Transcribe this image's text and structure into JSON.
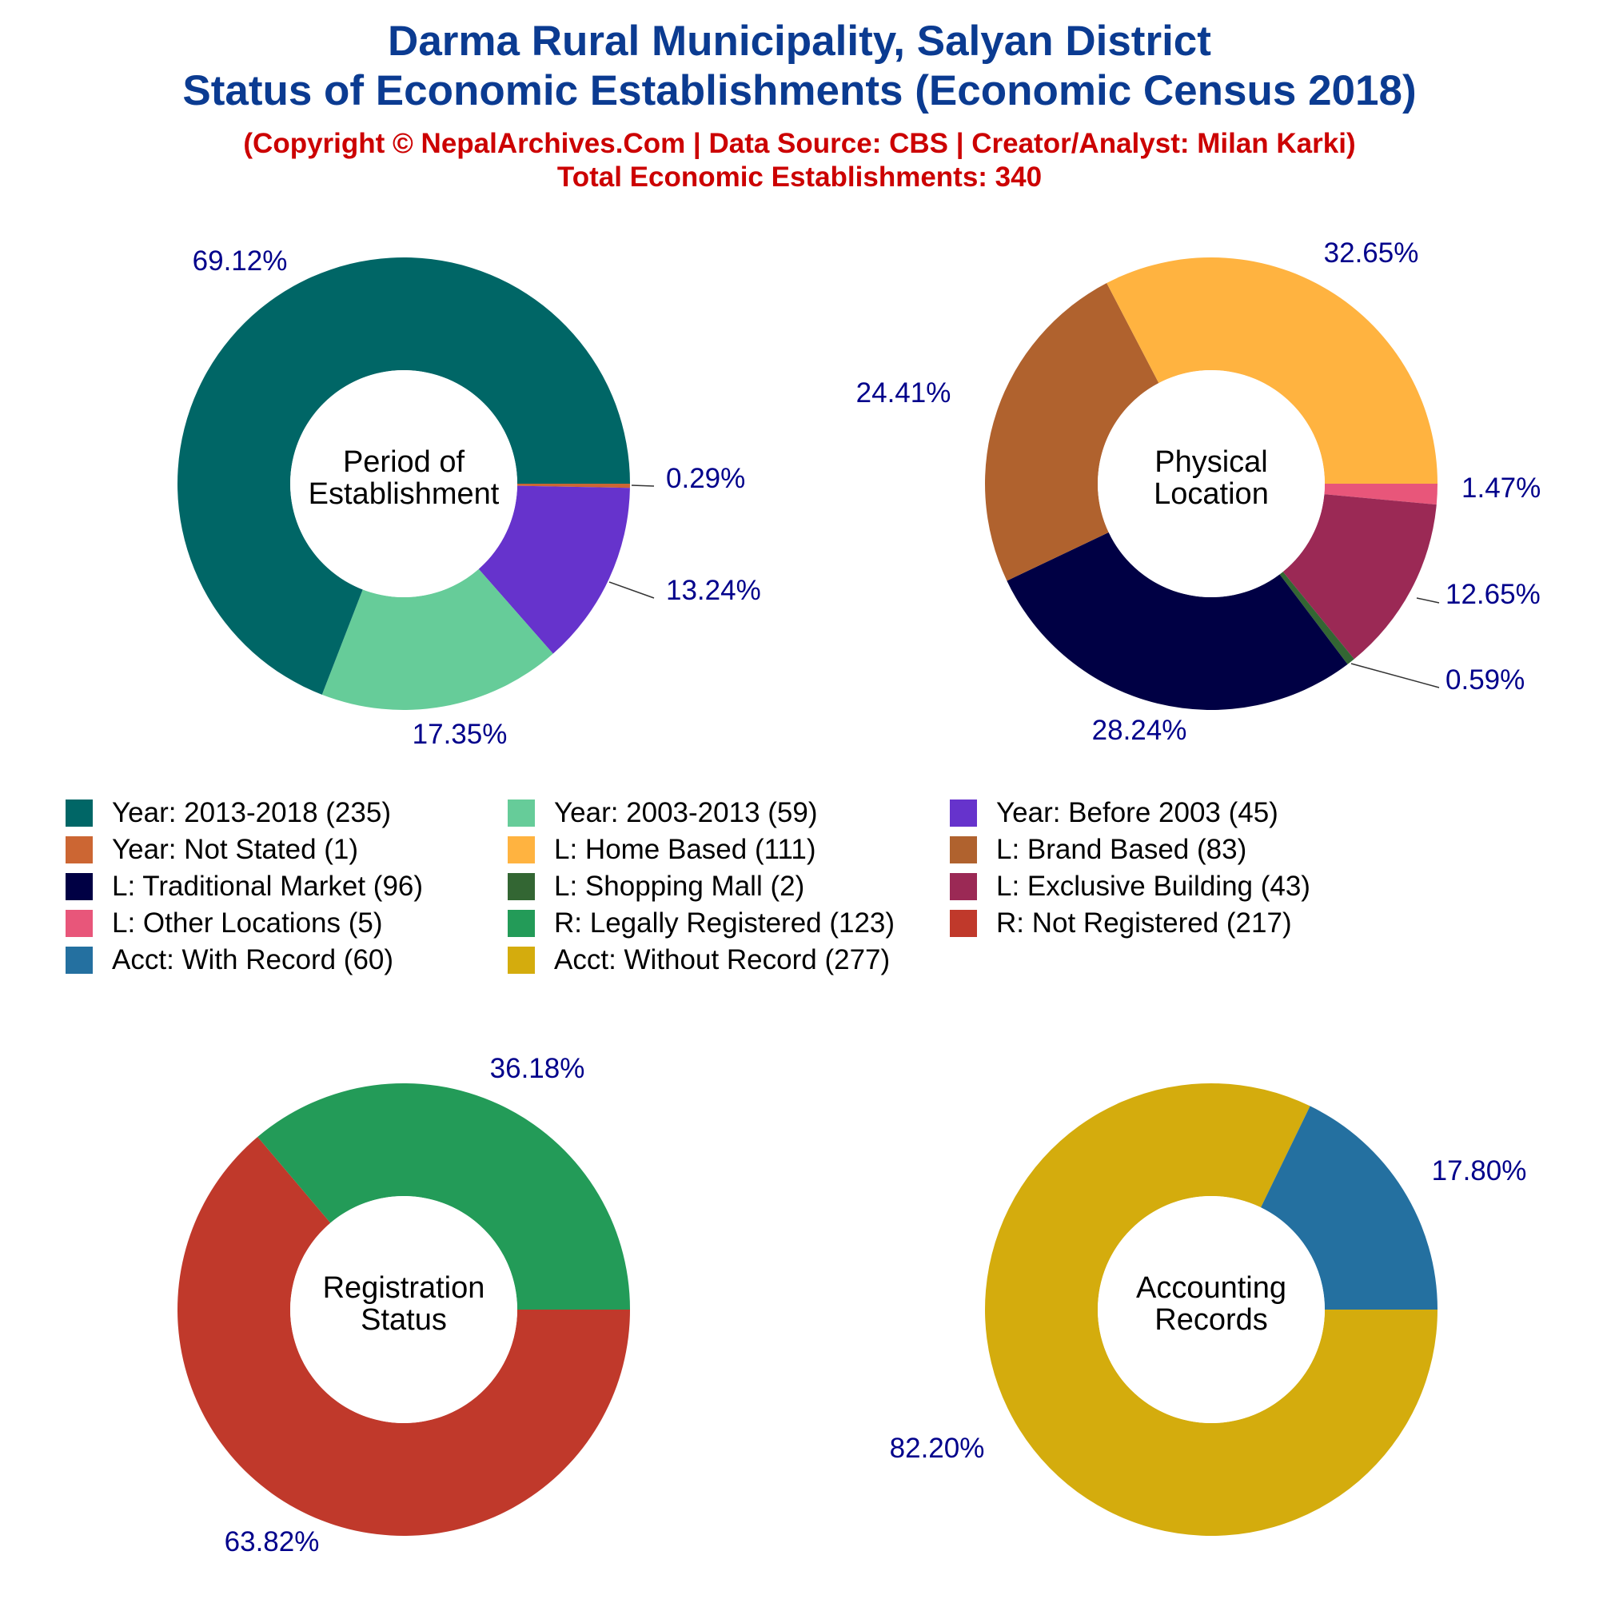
{
  "title_line1": "Darma Rural Municipality, Salyan District",
  "title_line2": "Status of Economic Establishments (Economic Census 2018)",
  "subtitle_line1": "(Copyright © NepalArchives.Com | Data Source: CBS | Creator/Analyst: Milan Karki)",
  "subtitle_line2": "Total Economic Establishments: 340",
  "label_color": "#00008b",
  "chart_data": [
    {
      "type": "pie",
      "variant": "donut",
      "center_label": [
        "Period of",
        "Establishment"
      ],
      "series": [
        {
          "name": "Year: 2013-2018 (235)",
          "value": 235,
          "percent_label": "69.12%",
          "color": "#006666"
        },
        {
          "name": "Year: 2003-2013 (59)",
          "value": 59,
          "percent_label": "17.35%",
          "color": "#66cc99"
        },
        {
          "name": "Year: Before 2003 (45)",
          "value": 45,
          "percent_label": "13.24%",
          "color": "#6633cc"
        },
        {
          "name": "Year: Not Stated (1)",
          "value": 1,
          "percent_label": "0.29%",
          "color": "#cc6633"
        }
      ]
    },
    {
      "type": "pie",
      "variant": "donut",
      "center_label": [
        "Physical",
        "Location"
      ],
      "series": [
        {
          "name": "L: Home Based (111)",
          "value": 111,
          "percent_label": "32.65%",
          "color": "#ffb340"
        },
        {
          "name": "L: Brand Based (83)",
          "value": 83,
          "percent_label": "24.41%",
          "color": "#b0622e"
        },
        {
          "name": "L: Traditional Market (96)",
          "value": 96,
          "percent_label": "28.24%",
          "color": "#000044"
        },
        {
          "name": "L: Shopping Mall (2)",
          "value": 2,
          "percent_label": "0.59%",
          "color": "#336633"
        },
        {
          "name": "L: Exclusive Building (43)",
          "value": 43,
          "percent_label": "12.65%",
          "color": "#9b2955"
        },
        {
          "name": "L: Other Locations (5)",
          "value": 5,
          "percent_label": "1.47%",
          "color": "#e8567a"
        }
      ]
    },
    {
      "type": "pie",
      "variant": "donut",
      "center_label": [
        "Registration",
        "Status"
      ],
      "series": [
        {
          "name": "R: Legally Registered (123)",
          "value": 123,
          "percent_label": "36.18%",
          "color": "#239b58"
        },
        {
          "name": "R: Not Registered (217)",
          "value": 217,
          "percent_label": "63.82%",
          "color": "#c0392b"
        }
      ]
    },
    {
      "type": "pie",
      "variant": "donut",
      "center_label": [
        "Accounting",
        "Records"
      ],
      "series": [
        {
          "name": "Acct: With Record (60)",
          "value": 60,
          "percent_label": "17.80%",
          "color": "#2470a0"
        },
        {
          "name": "Acct: Without Record (277)",
          "value": 277,
          "percent_label": "82.20%",
          "color": "#d4ac0d"
        }
      ]
    }
  ],
  "legend": [
    {
      "label": "Year: 2013-2018 (235)",
      "color": "#006666"
    },
    {
      "label": "Year: 2003-2013 (59)",
      "color": "#66cc99"
    },
    {
      "label": "Year: Before 2003 (45)",
      "color": "#6633cc"
    },
    {
      "label": "Year: Not Stated (1)",
      "color": "#cc6633"
    },
    {
      "label": "L: Home Based (111)",
      "color": "#ffb340"
    },
    {
      "label": "L: Brand Based (83)",
      "color": "#b0622e"
    },
    {
      "label": "L: Traditional Market (96)",
      "color": "#000044"
    },
    {
      "label": "L: Shopping Mall (2)",
      "color": "#336633"
    },
    {
      "label": "L: Exclusive Building (43)",
      "color": "#9b2955"
    },
    {
      "label": "L: Other Locations (5)",
      "color": "#e8567a"
    },
    {
      "label": "R: Legally Registered (123)",
      "color": "#239b58"
    },
    {
      "label": "R: Not Registered (217)",
      "color": "#c0392b"
    },
    {
      "label": "Acct: With Record (60)",
      "color": "#2470a0"
    },
    {
      "label": "Acct: Without Record (277)",
      "color": "#d4ac0d"
    }
  ]
}
